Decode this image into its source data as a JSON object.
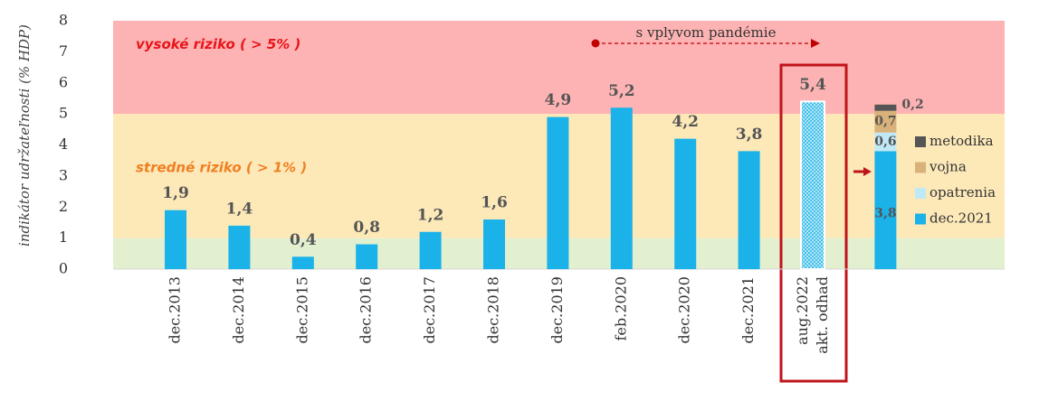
{
  "chart_data": {
    "type": "bar",
    "y_label": "indikátor udržateľnosti (% HDP)",
    "annotation": "s vplyvom pandémie",
    "categories": [
      "dec.2013",
      "dec.2014",
      "dec.2015",
      "dec.2016",
      "dec.2017",
      "dec.2018",
      "dec.2019",
      "feb.2020",
      "dec.2020",
      "dec.2021",
      "aug.2022 akt. odhad",
      null
    ],
    "values": [
      1.9,
      1.4,
      0.4,
      0.8,
      1.2,
      1.6,
      4.9,
      5.2,
      4.2,
      3.8,
      5.4,
      null
    ],
    "value_labels": [
      "1,9",
      "1,4",
      "0,4",
      "0,8",
      "1,2",
      "1,6",
      "4,9",
      "5,2",
      "4,2",
      "3,8",
      "5,4",
      null
    ],
    "color": "#1ab2e8",
    "series": [
      {
        "name": "dec.2021",
        "color": "#1ab2e8",
        "values": [
          null,
          null,
          null,
          null,
          null,
          null,
          null,
          null,
          null,
          null,
          null,
          3.8
        ],
        "value_labels": [
          null,
          null,
          null,
          null,
          null,
          null,
          null,
          null,
          null,
          null,
          null,
          "3,8"
        ]
      },
      {
        "name": "opatrenia",
        "color": "#bfe9f7",
        "values": [
          null,
          null,
          null,
          null,
          null,
          null,
          null,
          null,
          null,
          null,
          null,
          0.6
        ],
        "value_labels": [
          null,
          null,
          null,
          null,
          null,
          null,
          null,
          null,
          null,
          null,
          null,
          "0,6"
        ]
      },
      {
        "name": "vojna",
        "color": "#d8b27a",
        "values": [
          null,
          null,
          null,
          null,
          null,
          null,
          null,
          null,
          null,
          null,
          null,
          0.7
        ],
        "value_labels": [
          null,
          null,
          null,
          null,
          null,
          null,
          null,
          null,
          null,
          null,
          null,
          "0,7"
        ]
      },
      {
        "name": "metodika",
        "color": "#555555",
        "values": [
          null,
          null,
          null,
          null,
          null,
          null,
          null,
          null,
          null,
          null,
          null,
          0.2
        ],
        "value_labels": [
          null,
          null,
          null,
          null,
          null,
          null,
          null,
          null,
          null,
          null,
          null,
          "0,2"
        ]
      }
    ],
    "zones": [
      {
        "from": 0,
        "to": 1,
        "color": "#e2f0cf"
      },
      {
        "from": 1,
        "to": 5,
        "color": "#fde9b8",
        "label": "stredné riziko ( > 1% )",
        "label_color": "#f07f22"
      },
      {
        "from": 5,
        "to": 8,
        "color": "#fdb3b3",
        "label": "vysoké riziko ( > 5% )",
        "label_color": "#e8141b"
      }
    ],
    "ylim": [
      0,
      8
    ],
    "yticks": [
      0,
      1,
      2,
      3,
      4,
      5,
      6,
      7,
      8
    ]
  }
}
